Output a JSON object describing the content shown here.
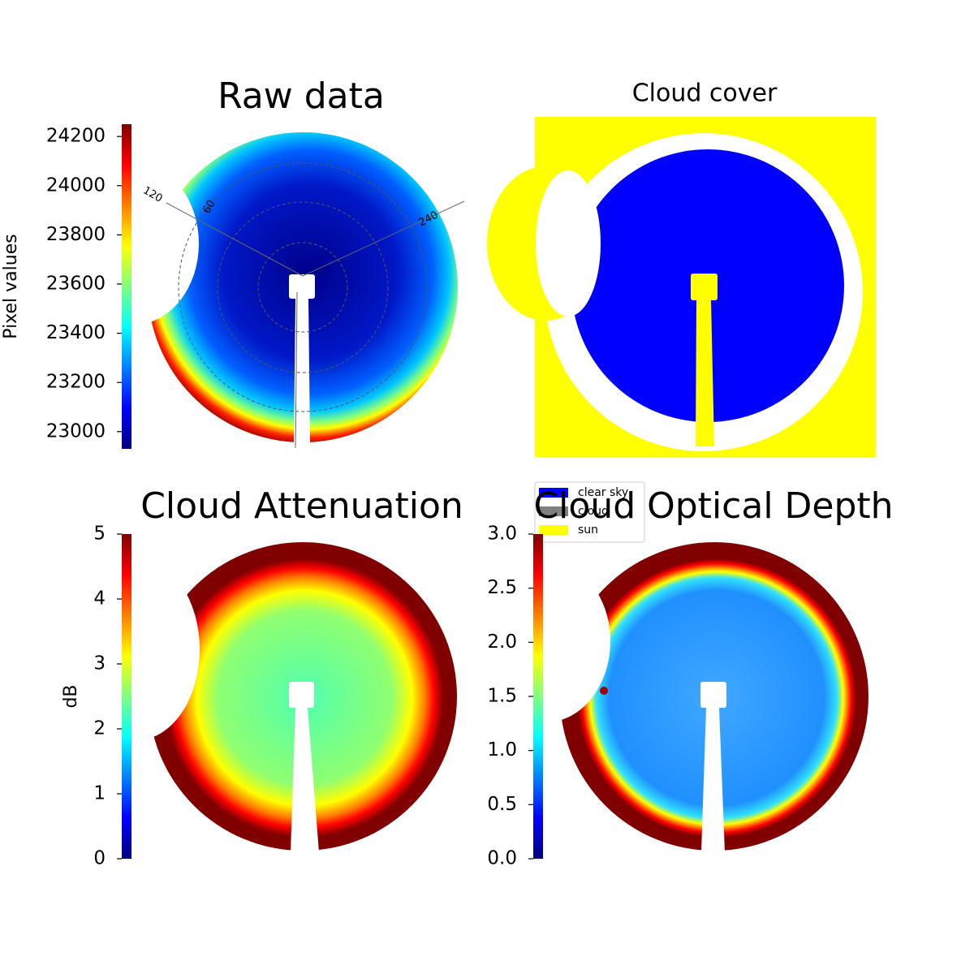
{
  "chart_data": [
    {
      "type": "image",
      "title": "Raw data",
      "colorbar": {
        "label": "Pixel values",
        "colormap": "jet",
        "ylim": [
          22930,
          24250
        ],
        "yticks": [
          23000,
          23200,
          23400,
          23600,
          23800,
          24000,
          24200
        ]
      },
      "polar_labels": [
        "120",
        "60",
        "240"
      ]
    },
    {
      "type": "image",
      "title": "Cloud cover",
      "legend": [
        {
          "name": "clear sky",
          "color": "#0000ff"
        },
        {
          "name": "cloud",
          "color": "#808080"
        },
        {
          "name": "sun",
          "color": "#ffff00"
        }
      ]
    },
    {
      "type": "image",
      "title": "Cloud Attenuation",
      "colorbar": {
        "label": "dB",
        "colormap": "jet",
        "ylim": [
          0,
          5
        ],
        "yticks": [
          0,
          1,
          2,
          3,
          4,
          5
        ]
      }
    },
    {
      "type": "image",
      "title": "Cloud Optical Depth",
      "colorbar": {
        "colormap": "jet",
        "ylim": [
          0,
          3
        ],
        "yticks": [
          {
            "value": 0,
            "label": "0.0"
          },
          0.5,
          {
            "value": 1,
            "label": "1.0"
          },
          1.5,
          {
            "value": 2,
            "label": "2.0"
          },
          2.5,
          {
            "value": 3,
            "label": "3.0"
          }
        ]
      }
    }
  ]
}
